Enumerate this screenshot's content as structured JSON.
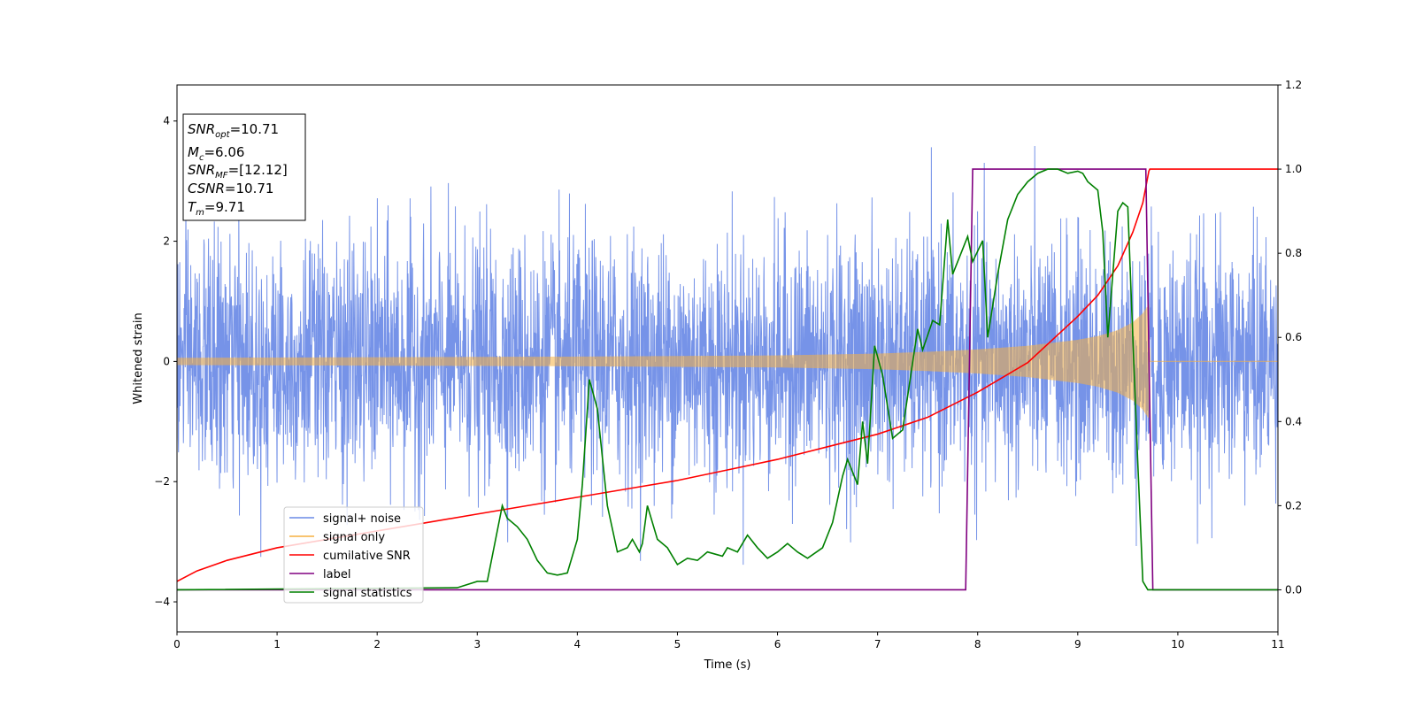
{
  "chart_data": {
    "type": "line",
    "xlabel": "Time (s)",
    "ylabel": "Whitened strain",
    "xlim": [
      0,
      11
    ],
    "ylim_left": [
      -4.5,
      4.6
    ],
    "ylim_right": [
      -0.1,
      1.2
    ],
    "x_ticks": [
      "0",
      "1",
      "2",
      "3",
      "4",
      "5",
      "6",
      "7",
      "8",
      "9",
      "10",
      "11"
    ],
    "y_ticks_left": [
      "−4",
      "−2",
      "0",
      "2",
      "4"
    ],
    "y_ticks_right": [
      "0.0",
      "0.2",
      "0.4",
      "0.6",
      "0.8",
      "1.0",
      "1.2"
    ],
    "annotation": {
      "snr_opt": {
        "base": "SNR",
        "sub": "opt",
        "value": "=10.71"
      },
      "mc": {
        "base": "M",
        "sub": "c",
        "value": "=6.06"
      },
      "snr_mf": {
        "base": "SNR",
        "sub": "MF",
        "value": "=[12.12]"
      },
      "csnr": {
        "base": "CSNR",
        "value": "=10.71"
      },
      "tm": {
        "base": "T",
        "sub": "m",
        "value": "=9.71"
      }
    },
    "legend_position": "lower-left",
    "series": [
      {
        "name": "signal+ noise",
        "axis": "left",
        "color": "#6a8ae6",
        "description_stats": {
          "std": 1.0,
          "min": -4.1,
          "max": 4.15
        }
      },
      {
        "name": "signal only",
        "axis": "left",
        "color": "#f5b041",
        "envelope": {
          "t": [
            0,
            1,
            2,
            3,
            4,
            5,
            6,
            7,
            7.5,
            8,
            8.5,
            9,
            9.2,
            9.4,
            9.55,
            9.65,
            9.71,
            9.72,
            11
          ],
          "amp": [
            0.06,
            0.065,
            0.07,
            0.075,
            0.08,
            0.09,
            0.1,
            0.13,
            0.16,
            0.2,
            0.26,
            0.36,
            0.42,
            0.52,
            0.65,
            0.8,
            0.95,
            0,
            0
          ]
        }
      },
      {
        "name": "cumilative SNR",
        "axis": "right",
        "color": "#ff0000",
        "x": [
          0,
          0.2,
          0.5,
          1,
          1.5,
          2,
          2.5,
          3,
          3.5,
          4,
          4.5,
          5,
          5.5,
          6,
          6.5,
          7,
          7.5,
          8,
          8.5,
          9,
          9.2,
          9.4,
          9.55,
          9.65,
          9.71,
          9.72,
          11
        ],
        "y": [
          0.02,
          0.045,
          0.07,
          0.1,
          0.12,
          0.14,
          0.16,
          0.18,
          0.2,
          0.22,
          0.24,
          0.26,
          0.285,
          0.31,
          0.34,
          0.37,
          0.41,
          0.47,
          0.54,
          0.65,
          0.7,
          0.77,
          0.85,
          0.92,
          0.995,
          1.0,
          1.0
        ]
      },
      {
        "name": "label",
        "axis": "right",
        "color": "#800080",
        "x": [
          0,
          7.88,
          7.95,
          9.68,
          9.75,
          11
        ],
        "y": [
          0,
          0,
          1,
          1,
          0,
          0
        ]
      },
      {
        "name": "signal statistics",
        "axis": "right",
        "color": "#008000",
        "x": [
          0,
          2.8,
          3.0,
          3.1,
          3.25,
          3.3,
          3.4,
          3.5,
          3.6,
          3.7,
          3.8,
          3.9,
          4.0,
          4.05,
          4.12,
          4.2,
          4.3,
          4.4,
          4.5,
          4.55,
          4.62,
          4.65,
          4.7,
          4.8,
          4.9,
          5.0,
          5.1,
          5.2,
          5.3,
          5.45,
          5.5,
          5.6,
          5.7,
          5.8,
          5.9,
          6.0,
          6.1,
          6.2,
          6.3,
          6.45,
          6.55,
          6.65,
          6.7,
          6.8,
          6.85,
          6.9,
          6.97,
          7.05,
          7.15,
          7.25,
          7.3,
          7.4,
          7.45,
          7.55,
          7.62,
          7.7,
          7.75,
          7.8,
          7.85,
          7.9,
          7.95,
          8.05,
          8.1,
          8.2,
          8.3,
          8.4,
          8.5,
          8.6,
          8.7,
          8.8,
          8.9,
          9.0,
          9.05,
          9.1,
          9.2,
          9.25,
          9.3,
          9.4,
          9.45,
          9.5,
          9.55,
          9.6,
          9.65,
          9.7,
          9.75,
          10.0,
          11.0
        ],
        "y": [
          0,
          0.005,
          0.02,
          0.02,
          0.2,
          0.17,
          0.15,
          0.12,
          0.07,
          0.04,
          0.035,
          0.04,
          0.12,
          0.25,
          0.5,
          0.43,
          0.2,
          0.09,
          0.1,
          0.12,
          0.09,
          0.11,
          0.2,
          0.12,
          0.1,
          0.06,
          0.075,
          0.07,
          0.09,
          0.08,
          0.1,
          0.09,
          0.13,
          0.1,
          0.075,
          0.09,
          0.11,
          0.09,
          0.075,
          0.1,
          0.16,
          0.27,
          0.31,
          0.25,
          0.4,
          0.3,
          0.58,
          0.51,
          0.36,
          0.38,
          0.46,
          0.62,
          0.57,
          0.64,
          0.63,
          0.88,
          0.75,
          0.78,
          0.81,
          0.84,
          0.78,
          0.83,
          0.6,
          0.75,
          0.88,
          0.94,
          0.97,
          0.99,
          1.0,
          1.0,
          0.99,
          0.995,
          0.99,
          0.97,
          0.95,
          0.85,
          0.6,
          0.9,
          0.92,
          0.91,
          0.6,
          0.3,
          0.02,
          0.0,
          0.0,
          0.0,
          0.0
        ]
      }
    ]
  }
}
